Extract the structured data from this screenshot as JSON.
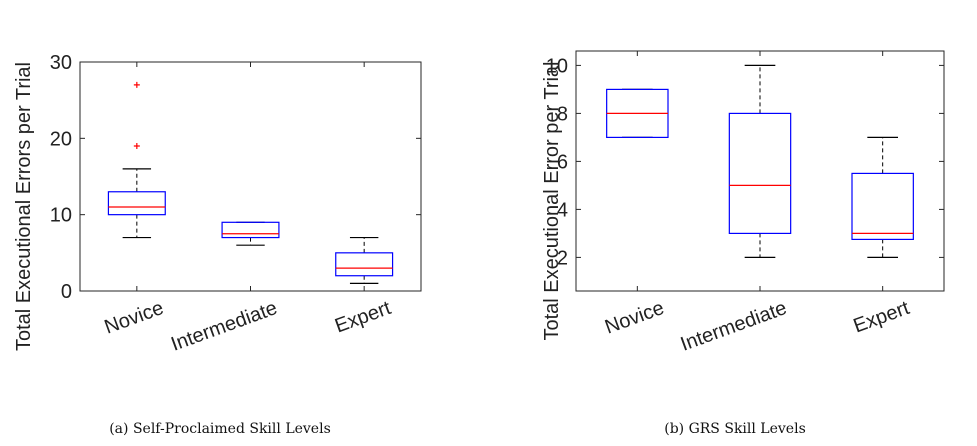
{
  "chart_data": [
    {
      "type": "box",
      "caption": "(a) Self-Proclaimed Skill Levels",
      "ylabel": "Total Executional Errors per Trial",
      "ylim": [
        0,
        30
      ],
      "yticks": [
        0,
        10,
        20,
        30
      ],
      "categories": [
        "Novice",
        "Intermediate",
        "Expert"
      ],
      "boxes": [
        {
          "min": 7,
          "q1": 10,
          "median": 11,
          "q3": 13,
          "max": 16,
          "outliers": [
            19,
            27
          ]
        },
        {
          "min": 6,
          "q1": 7,
          "median": 7.5,
          "q3": 9,
          "max": 9,
          "outliers": []
        },
        {
          "min": 1,
          "q1": 2,
          "median": 3,
          "q3": 5,
          "max": 7,
          "outliers": []
        }
      ],
      "grid": false
    },
    {
      "type": "box",
      "caption": "(b) GRS Skill Levels",
      "ylabel": "Total Executional Error per Trial",
      "ylim": [
        0.6,
        10.6
      ],
      "yticks": [
        2,
        4,
        6,
        8,
        10
      ],
      "categories": [
        "Novice",
        "Intermediate",
        "Expert"
      ],
      "boxes": [
        {
          "min": 7,
          "q1": 7,
          "median": 8,
          "q3": 9,
          "max": 9,
          "outliers": []
        },
        {
          "min": 2,
          "q1": 3,
          "median": 5,
          "q3": 8,
          "max": 10,
          "outliers": []
        },
        {
          "min": 2,
          "q1": 2.75,
          "median": 3,
          "q3": 5.5,
          "max": 7,
          "outliers": []
        }
      ],
      "grid": false
    }
  ],
  "colors": {
    "box": "#0000ff",
    "median": "#ff0000",
    "whisker": "#000000",
    "outlier": "#ff0000"
  }
}
